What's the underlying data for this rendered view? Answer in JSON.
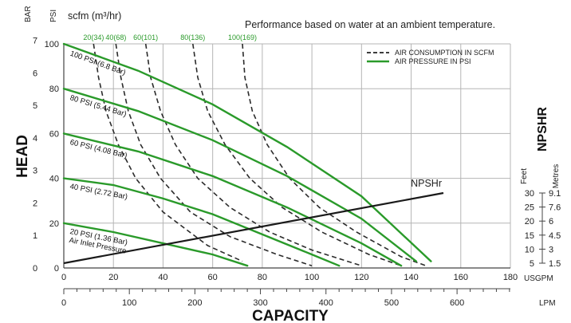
{
  "chart_data": {
    "type": "line",
    "note": "Performance based on water at an ambient temperature.",
    "xlabel": "CAPACITY",
    "ylabel": "HEAD",
    "x_unit_usgpm": "USGPM",
    "x_unit_lpm": "LPM",
    "xlim_usgpm": [
      0,
      180
    ],
    "x_ticks_usgpm": [
      0,
      20,
      40,
      60,
      80,
      100,
      120,
      140,
      160,
      180
    ],
    "x_ticks_lpm": [
      0,
      100,
      200,
      300,
      400,
      500,
      600
    ],
    "y_unit_bar": "BAR",
    "y_unit_psi": "PSI",
    "y_ticks_bar": [
      0,
      1,
      2,
      3,
      4,
      5,
      6,
      7
    ],
    "y_ticks_psi": [
      0,
      20,
      40,
      60,
      80,
      100
    ],
    "ylim_psi": [
      0,
      100
    ],
    "scfm_label": "scfm (m³/hr)",
    "grid": true,
    "legend": {
      "position": "top-right",
      "items": [
        {
          "label": "AIR CONSUMPTION IN SCFM",
          "style": "dashed",
          "color": "#222222"
        },
        {
          "label": "AIR PRESSURE IN PSI",
          "style": "solid",
          "color": "#2a9a2a"
        }
      ]
    },
    "air_pressure_series": [
      {
        "label": "100 PSI (6.8 Bar)",
        "x": [
          0,
          30,
          60,
          90,
          120,
          148
        ],
        "y": [
          100,
          88,
          73,
          54,
          32,
          3
        ]
      },
      {
        "label": "80 PSI (5.44 Bar)",
        "x": [
          0,
          30,
          60,
          90,
          120,
          142
        ],
        "y": [
          80,
          70,
          57,
          41,
          22,
          3
        ]
      },
      {
        "label": "60 PSI (4.08 Bar)",
        "x": [
          0,
          30,
          60,
          90,
          120,
          136
        ],
        "y": [
          60,
          52,
          41,
          27,
          11,
          1
        ]
      },
      {
        "label": "40 PSI (2.72 Bar)",
        "x": [
          0,
          20,
          40,
          60,
          80,
          100,
          111
        ],
        "y": [
          40,
          37,
          31,
          24,
          15,
          6,
          1
        ]
      },
      {
        "label": "20 PSI (1.36 Bar)",
        "x": [
          0,
          20,
          40,
          60,
          74
        ],
        "y": [
          20,
          16,
          11,
          6,
          1
        ]
      }
    ],
    "air_pressure_extra_label": "Air Inlet Pressure",
    "air_consumption_series": [
      {
        "label": "20(34)",
        "x": [
          12,
          14,
          17,
          22,
          29,
          40,
          58,
          72
        ],
        "y": [
          100,
          85,
          70,
          55,
          40,
          25,
          10,
          3
        ]
      },
      {
        "label": "40(68)",
        "x": [
          21,
          23,
          26,
          31,
          39,
          51,
          67,
          86,
          100
        ],
        "y": [
          100,
          85,
          70,
          55,
          40,
          25,
          14,
          6,
          1
        ]
      },
      {
        "label": "60(101)",
        "x": [
          33,
          35,
          39,
          45,
          54,
          67,
          83,
          100,
          120
        ],
        "y": [
          100,
          85,
          70,
          55,
          40,
          27,
          16,
          8,
          1
        ]
      },
      {
        "label": "80(136)",
        "x": [
          52,
          54,
          58,
          65,
          75,
          88,
          104,
          123,
          136
        ],
        "y": [
          100,
          85,
          70,
          55,
          40,
          27,
          16,
          6,
          1
        ]
      },
      {
        "label": "100(169)",
        "x": [
          72,
          73,
          76,
          82,
          91,
          103,
          118,
          136,
          146
        ],
        "y": [
          100,
          85,
          70,
          55,
          40,
          27,
          16,
          5,
          1
        ]
      }
    ],
    "npshr_series": {
      "label": "NPSHr",
      "x": [
        0,
        153
      ],
      "y_feet": [
        5,
        30
      ]
    },
    "npshr_title": "NPSHR",
    "npshr_feet_label": "Feet",
    "npshr_metres_label": "Metres",
    "npshr_ticks_feet": [
      5,
      10,
      15,
      20,
      25,
      30
    ],
    "npshr_ticks_metres": [
      "1.5",
      "3",
      "4.5",
      "6",
      "7.6",
      "9.1"
    ]
  }
}
